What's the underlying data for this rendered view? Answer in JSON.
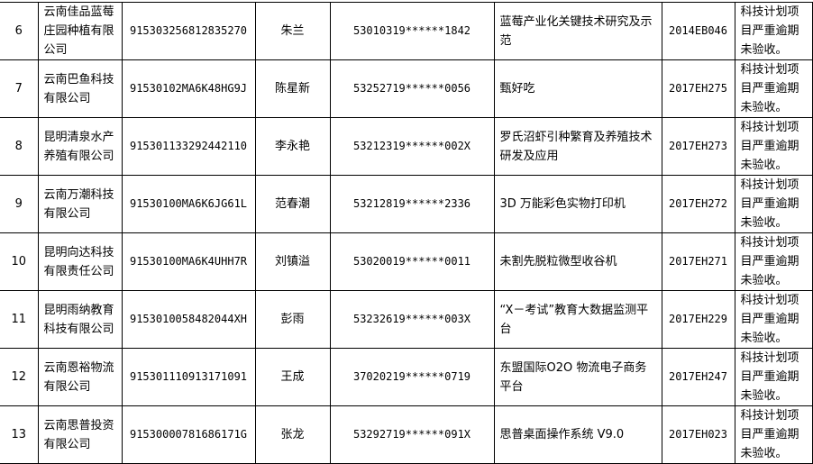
{
  "rows": [
    {
      "no": "6",
      "company": "云南佳品蓝莓庄园种植有限公司",
      "credit_code": "915303256812835270",
      "person": "朱兰",
      "id_number": "53010319******1842",
      "project": "蓝莓产业化关键技术研究及示范",
      "project_code": "2014EB046",
      "reason": "科技计划项目严重逾期未验收。"
    },
    {
      "no": "7",
      "company": "云南巴鱼科技有限公司",
      "credit_code": "91530102MA6K48HG9J",
      "person": "陈星新",
      "id_number": "53252719******0056",
      "project": "甄好吃",
      "project_code": "2017EH275",
      "reason": "科技计划项目严重逾期未验收。"
    },
    {
      "no": "8",
      "company": "昆明清泉水产养殖有限公司",
      "credit_code": "915301133292442110",
      "person": "李永艳",
      "id_number": "53212319******002X",
      "project": "罗氏沼虾引种繁育及养殖技术研发及应用",
      "project_code": "2017EH273",
      "reason": "科技计划项目严重逾期未验收。"
    },
    {
      "no": "9",
      "company": "云南万潮科技有限公司",
      "credit_code": "91530100MA6K6JG61L",
      "person": "范春潮",
      "id_number": "53212819******2336",
      "project": "3D 万能彩色实物打印机",
      "project_code": "2017EH272",
      "reason": "科技计划项目严重逾期未验收。"
    },
    {
      "no": "10",
      "company": "昆明向达科技有限责任公司",
      "credit_code": "91530100MA6K4UHH7R",
      "person": "刘镇溢",
      "id_number": "53020019******0011",
      "project": "未割先脱粒微型收谷机",
      "project_code": "2017EH271",
      "reason": "科技计划项目严重逾期未验收。"
    },
    {
      "no": "11",
      "company": "昆明雨纳教育科技有限公司",
      "credit_code": "915301005848204​4XH",
      "person": "彭雨",
      "id_number": "53232619******003X",
      "project": "“X－考试”教育大数据监测平台",
      "project_code": "2017EH229",
      "reason": "科技计划项目严重逾期未验收。"
    },
    {
      "no": "12",
      "company": "云南恩裕物流有限公司",
      "credit_code": "915301110913171091",
      "person": "王成",
      "id_number": "37020219******0719",
      "project": "东盟国际O2O 物流电子商务平台",
      "project_code": "2017EH247",
      "reason": "科技计划项目严重逾期未验收。"
    },
    {
      "no": "13",
      "company": "云南思普投资有限公司",
      "credit_code": "91530000781686171G",
      "person": "张龙",
      "id_number": "53292719******091X",
      "project": "思普桌面操作系统 V9.0",
      "project_code": "2017EH023",
      "reason": "科技计划项目严重逾期未验收。"
    }
  ]
}
